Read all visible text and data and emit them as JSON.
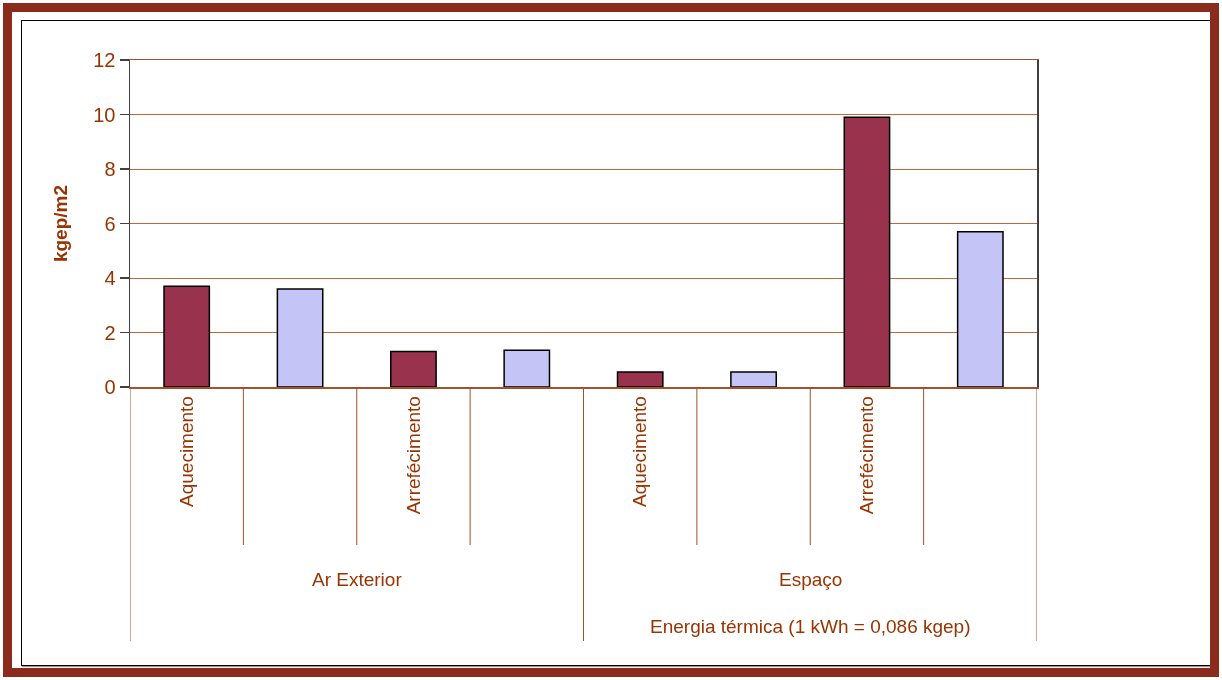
{
  "chart_data": {
    "type": "bar",
    "ylabel": "kgep/m2",
    "categories": [
      "Aquecimento",
      null,
      "Arrefécimento",
      null,
      "Aquecimento",
      null,
      "Arrefécimento",
      null
    ],
    "series": [
      {
        "color": "#99334d",
        "values": [
          3.7,
          null,
          1.3,
          null,
          0.55,
          null,
          9.9,
          null
        ]
      },
      {
        "color": "#c4c4f6",
        "values": [
          null,
          3.6,
          null,
          1.35,
          null,
          0.55,
          null,
          5.7
        ]
      }
    ],
    "ylim": [
      0,
      12
    ],
    "yticks": [
      0,
      2,
      4,
      6,
      8,
      10,
      12
    ],
    "grid": "y",
    "annotations": [
      "Ar Exterior",
      "Espaço",
      "Energia térmica (1 kWh = 0,086 kgep)"
    ]
  }
}
